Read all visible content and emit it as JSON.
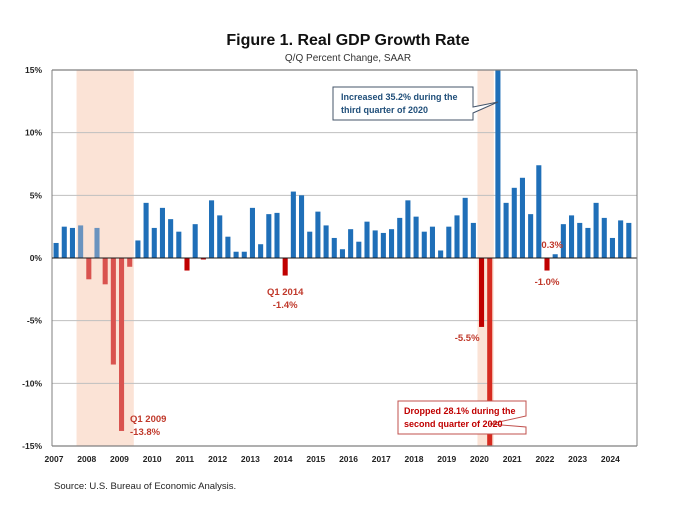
{
  "chart_data": {
    "type": "bar",
    "title": "Figure 1. Real GDP Growth Rate",
    "subtitle": "Q/Q Percent Change, SAAR",
    "xlabel": "",
    "ylabel": "",
    "ylim": [
      -15,
      15
    ],
    "yticks": [
      "15%",
      "10%",
      "5%",
      "0%",
      "-5%",
      "-10%",
      "-15%"
    ],
    "ytick_values": [
      15,
      10,
      5,
      0,
      -5,
      -10,
      -15
    ],
    "grid": true,
    "x_tick_labels": [
      "2007",
      "2008",
      "2009",
      "2010",
      "2011",
      "2012",
      "2013",
      "2014",
      "2015",
      "2016",
      "2017",
      "2018",
      "2019",
      "2020",
      "2021",
      "2022",
      "2023",
      "2024"
    ],
    "start_year": 2007,
    "quarters": [
      "2007Q1",
      "2007Q2",
      "2007Q3",
      "2007Q4",
      "2008Q1",
      "2008Q2",
      "2008Q3",
      "2008Q4",
      "2009Q1",
      "2009Q2",
      "2009Q3",
      "2009Q4",
      "2010Q1",
      "2010Q2",
      "2010Q3",
      "2010Q4",
      "2011Q1",
      "2011Q2",
      "2011Q3",
      "2011Q4",
      "2012Q1",
      "2012Q2",
      "2012Q3",
      "2012Q4",
      "2013Q1",
      "2013Q2",
      "2013Q3",
      "2013Q4",
      "2014Q1",
      "2014Q2",
      "2014Q3",
      "2014Q4",
      "2015Q1",
      "2015Q2",
      "2015Q3",
      "2015Q4",
      "2016Q1",
      "2016Q2",
      "2016Q3",
      "2016Q4",
      "2017Q1",
      "2017Q2",
      "2017Q3",
      "2017Q4",
      "2018Q1",
      "2018Q2",
      "2018Q3",
      "2018Q4",
      "2019Q1",
      "2019Q2",
      "2019Q3",
      "2019Q4",
      "2020Q1",
      "2020Q2",
      "2020Q3",
      "2020Q4",
      "2021Q1",
      "2021Q2",
      "2021Q3",
      "2021Q4",
      "2022Q1",
      "2022Q2",
      "2022Q3",
      "2022Q4",
      "2023Q1",
      "2023Q2",
      "2023Q3",
      "2023Q4",
      "2024Q1",
      "2024Q2",
      "2024Q3"
    ],
    "values": [
      1.2,
      2.5,
      2.4,
      2.6,
      -1.7,
      2.4,
      -2.1,
      -8.5,
      -13.8,
      -0.7,
      1.4,
      4.4,
      2.4,
      4.0,
      3.1,
      2.1,
      -1.0,
      2.7,
      -0.1,
      4.6,
      3.4,
      1.7,
      0.5,
      0.5,
      4.0,
      1.1,
      3.5,
      3.6,
      -1.4,
      5.3,
      5.0,
      2.1,
      3.7,
      2.6,
      1.6,
      0.7,
      2.3,
      1.3,
      2.9,
      2.2,
      2.0,
      2.3,
      3.2,
      4.6,
      3.3,
      2.1,
      2.5,
      0.6,
      2.5,
      3.4,
      4.8,
      2.8,
      -5.5,
      -28.1,
      35.2,
      4.4,
      5.6,
      6.4,
      3.5,
      7.4,
      -1.0,
      0.3,
      2.7,
      3.4,
      2.8,
      2.4,
      4.4,
      3.2,
      1.6,
      3.0,
      2.8
    ],
    "recession_bands": [
      {
        "start": "2007Q4",
        "end": "2009Q2"
      },
      {
        "start": "2020Q1",
        "end": "2020Q2"
      }
    ],
    "colors": {
      "positive": "#1f6fb8",
      "positive_in_recession": "#6a93bf",
      "negative_recession": "#d9534f",
      "negative_other": "#c00000",
      "recession_band": "#fbe3d6",
      "gridline": "#bfbfbf",
      "axis": "#7f7f7f",
      "annotation_red": "#c0392b",
      "annotation_blue": "#1f4e79"
    },
    "annotations": [
      {
        "id": "q1-2009",
        "lines": [
          "Q1 2009",
          "-13.8%"
        ],
        "target": "2009Q1"
      },
      {
        "id": "q1-2014",
        "lines": [
          "Q1 2014",
          "-1.4%"
        ],
        "target": "2014Q1"
      },
      {
        "id": "q1-2020",
        "lines": [
          "-5.5%"
        ],
        "target": "2020Q1"
      },
      {
        "id": "q1-2022",
        "lines": [
          "-1.0%"
        ],
        "target": "2022Q1"
      },
      {
        "id": "q2-2022",
        "lines": [
          "0.3%"
        ],
        "target": "2022Q2"
      },
      {
        "id": "q3-2020-box",
        "lines": [
          "Increased 35.2%  during the",
          "third quarter of 2020"
        ],
        "target": "2020Q3"
      },
      {
        "id": "q2-2020-box",
        "lines": [
          "Dropped 28.1%  during the",
          "second quarter of 2020"
        ],
        "target": "2020Q2"
      }
    ]
  },
  "source": "Source: U.S. Bureau of Economic Analysis."
}
